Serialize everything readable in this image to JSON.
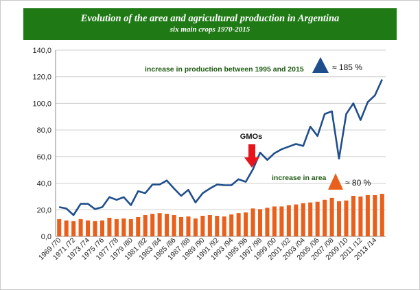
{
  "chart_data": {
    "type": "bar+line",
    "title": "Evolution of the area and agricultural production in Argentina",
    "subtitle": "six main crops 1970-2015",
    "ylim": [
      0,
      140
    ],
    "yticks": [
      "0,0",
      "20,0",
      "40,0",
      "60,0",
      "80,0",
      "100,0",
      "120,0",
      "140,0"
    ],
    "categories": [
      "1969 /70",
      "1970 /71",
      "1971 /72",
      "1972 /73",
      "1973 /74",
      "1974 /75",
      "1975 /76",
      "1976 /77",
      "1977 /78",
      "1978 /79",
      "1979 /80",
      "1980 /81",
      "1981 /82",
      "1982 /83",
      "1983 /84",
      "1984 /85",
      "1985 /86",
      "1986 /87",
      "1987 /88",
      "1988 /89",
      "1989 /90",
      "1990 /91",
      "1991 /92",
      "1992 /93",
      "1993 /94",
      "1994 /95",
      "1995 /96",
      "1996 /97",
      "1997 /98",
      "1998 /99",
      "1999 /00",
      "2000 /01",
      "2001 /02",
      "2002 /03",
      "2003 /04",
      "2004 /05",
      "2005 /06",
      "2006 /07",
      "2007 /08",
      "2008 /09",
      "2009 /10",
      "2010 /11",
      "2011 /12",
      "2012 /13",
      "2013 /14",
      "2014 /15"
    ],
    "tick_labels": [
      "1969 /70",
      "1971 /72",
      "1973 /74",
      "1975 /76",
      "1977 /78",
      "1979 /80",
      "1981 /82",
      "1983 /84",
      "1985 /86",
      "1987 /88",
      "1989 /90",
      "1991 /92",
      "1993 /94",
      "1995 /96",
      "1997 /98",
      "1999 /00",
      "2001 /02",
      "2003 /04",
      "2005 /06",
      "2007 /08",
      "2009 /10",
      "2011 /12",
      "2013 /14"
    ],
    "series": [
      {
        "name": "area",
        "kind": "bar",
        "color": "#e8601c",
        "values": [
          13.0,
          12.0,
          11.5,
          13.0,
          12.0,
          11.5,
          12.0,
          14.0,
          13.0,
          13.5,
          13.0,
          14.5,
          16.0,
          17.0,
          17.5,
          17.0,
          16.0,
          14.5,
          15.0,
          13.5,
          15.5,
          16.0,
          15.5,
          15.0,
          16.5,
          17.5,
          18.0,
          21.0,
          20.5,
          21.5,
          22.5,
          22.5,
          23.5,
          24.0,
          25.0,
          25.5,
          26.0,
          27.5,
          29.0,
          26.5,
          27.0,
          30.5,
          30.0,
          31.0,
          31.0,
          32.0
        ]
      },
      {
        "name": "production",
        "kind": "line",
        "color": "#1f4e8c",
        "values": [
          22.0,
          21.0,
          16.0,
          24.5,
          24.5,
          20.5,
          22.0,
          29.5,
          27.5,
          29.5,
          23.5,
          34.0,
          32.5,
          39.0,
          39.0,
          42.0,
          36.0,
          30.5,
          35.0,
          25.5,
          32.5,
          36.0,
          39.0,
          38.5,
          38.5,
          43.0,
          41.0,
          50.5,
          63.0,
          57.5,
          62.5,
          65.5,
          67.5,
          69.5,
          68.0,
          82.5,
          75.5,
          92.0,
          94.0,
          58.5,
          92.0,
          100.0,
          87.5,
          101.0,
          106.0,
          118.0
        ]
      }
    ],
    "annotations": {
      "production_label": "increase in production between 1995 and 2015",
      "production_value": "≈ 185 %",
      "area_label": "increase in area",
      "area_value": "≈ 80 %",
      "gmo_label": "GMOs"
    },
    "colors": {
      "title_bg": "#1f7a16",
      "production_triangle": "#1f4e8c",
      "area_triangle": "#e8601c",
      "gmo_arrow": "#e8141c",
      "grid": "#cccccc"
    }
  }
}
